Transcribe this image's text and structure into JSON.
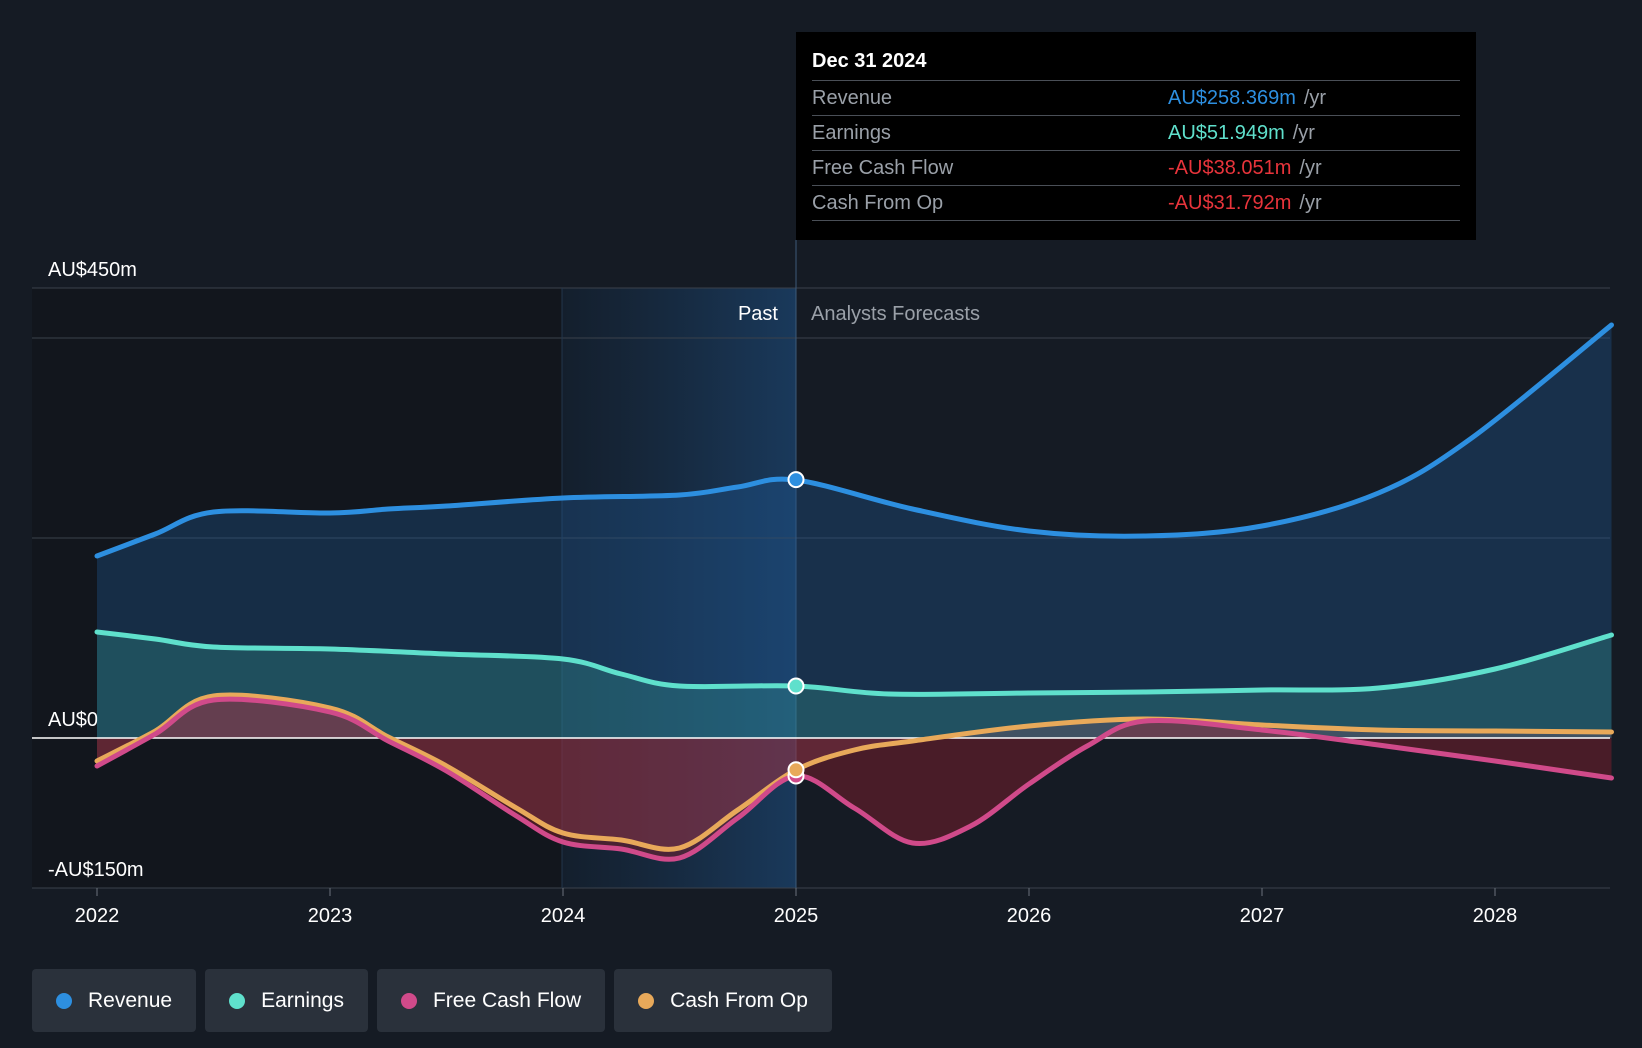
{
  "chart_data": {
    "type": "area",
    "ylim": [
      -150,
      450
    ],
    "y_ticks": [
      {
        "value": 450,
        "label": "AU$450m"
      },
      {
        "value": 0,
        "label": "AU$0"
      },
      {
        "value": -150,
        "label": "-AU$150m"
      }
    ],
    "x_ticks": [
      2022,
      2023,
      2024,
      2025,
      2026,
      2027,
      2028
    ],
    "xlim": [
      2021.73,
      2028.5
    ],
    "past_label": "Past",
    "forecast_label": "Analysts Forecasts",
    "divider_x": 2025.0,
    "highlight_start": 2024.0,
    "series": [
      {
        "name": "Revenue",
        "color": "#2d8fe0",
        "points": [
          [
            2022.0,
            182
          ],
          [
            2022.25,
            204
          ],
          [
            2022.5,
            226
          ],
          [
            2023.0,
            225
          ],
          [
            2023.25,
            229
          ],
          [
            2023.5,
            232
          ],
          [
            2024.0,
            240
          ],
          [
            2024.5,
            243
          ],
          [
            2024.75,
            251
          ],
          [
            2025.0,
            258
          ],
          [
            2025.5,
            229
          ],
          [
            2026.0,
            207
          ],
          [
            2026.5,
            202
          ],
          [
            2027.0,
            212
          ],
          [
            2027.5,
            245
          ],
          [
            2027.9,
            300
          ],
          [
            2028.5,
            413
          ]
        ]
      },
      {
        "name": "Earnings",
        "color": "#5fe0cc",
        "points": [
          [
            2022.0,
            106
          ],
          [
            2022.25,
            99
          ],
          [
            2022.5,
            91
          ],
          [
            2023.0,
            89
          ],
          [
            2023.5,
            84
          ],
          [
            2024.0,
            79
          ],
          [
            2024.25,
            64
          ],
          [
            2024.5,
            52
          ],
          [
            2025.0,
            52
          ],
          [
            2025.4,
            44
          ],
          [
            2026.0,
            45
          ],
          [
            2026.5,
            46
          ],
          [
            2027.0,
            48
          ],
          [
            2027.5,
            50
          ],
          [
            2028.0,
            69
          ],
          [
            2028.5,
            103
          ]
        ]
      },
      {
        "name": "Free Cash Flow",
        "color": "#d04a8a",
        "points": [
          [
            2022.0,
            -28
          ],
          [
            2022.25,
            4
          ],
          [
            2022.5,
            38
          ],
          [
            2023.0,
            26
          ],
          [
            2023.25,
            -3
          ],
          [
            2023.5,
            -33
          ],
          [
            2023.8,
            -78
          ],
          [
            2024.0,
            -104
          ],
          [
            2024.25,
            -111
          ],
          [
            2024.5,
            -120
          ],
          [
            2024.75,
            -80
          ],
          [
            2025.0,
            -38
          ],
          [
            2025.25,
            -70
          ],
          [
            2025.5,
            -105
          ],
          [
            2025.75,
            -88
          ],
          [
            2026.0,
            -46
          ],
          [
            2026.25,
            -8
          ],
          [
            2026.5,
            17
          ],
          [
            2027.0,
            8
          ],
          [
            2027.5,
            -7
          ],
          [
            2028.0,
            -23
          ],
          [
            2028.5,
            -40
          ]
        ]
      },
      {
        "name": "Cash From Op",
        "color": "#e8a95a",
        "points": [
          [
            2022.0,
            -23
          ],
          [
            2022.25,
            7
          ],
          [
            2022.5,
            42
          ],
          [
            2023.0,
            30
          ],
          [
            2023.25,
            1
          ],
          [
            2023.5,
            -28
          ],
          [
            2023.8,
            -70
          ],
          [
            2024.0,
            -95
          ],
          [
            2024.25,
            -102
          ],
          [
            2024.5,
            -110
          ],
          [
            2024.75,
            -72
          ],
          [
            2025.0,
            -32
          ],
          [
            2025.25,
            -12
          ],
          [
            2025.5,
            -3
          ],
          [
            2026.0,
            12
          ],
          [
            2026.5,
            19
          ],
          [
            2027.0,
            13
          ],
          [
            2027.5,
            8
          ],
          [
            2028.0,
            7
          ],
          [
            2028.5,
            6
          ]
        ]
      }
    ]
  },
  "tooltip": {
    "date": "Dec 31 2024",
    "unit": "/yr",
    "rows": [
      {
        "label": "Revenue",
        "value": "AU$258.369m",
        "color": "#2d8fe0"
      },
      {
        "label": "Earnings",
        "value": "AU$51.949m",
        "color": "#5fe0cc"
      },
      {
        "label": "Free Cash Flow",
        "value": "-AU$38.051m",
        "color": "#e8343b"
      },
      {
        "label": "Cash From Op",
        "value": "-AU$31.792m",
        "color": "#e8343b"
      }
    ]
  },
  "legend": [
    {
      "label": "Revenue",
      "color": "#2d8fe0"
    },
    {
      "label": "Earnings",
      "color": "#5fe0cc"
    },
    {
      "label": "Free Cash Flow",
      "color": "#d04a8a"
    },
    {
      "label": "Cash From Op",
      "color": "#e8a95a"
    }
  ]
}
